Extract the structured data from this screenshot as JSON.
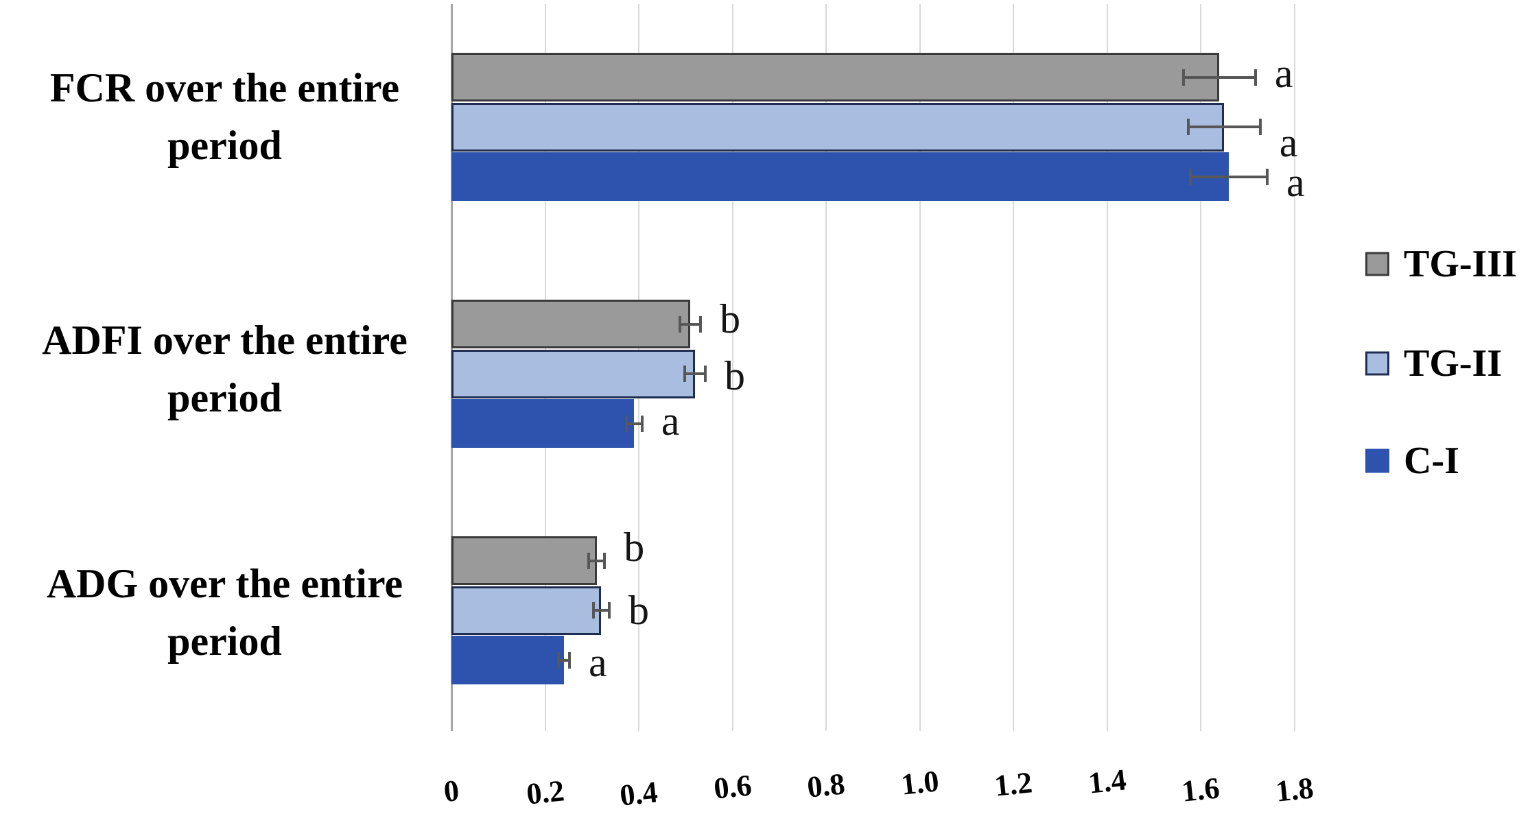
{
  "chart_data": {
    "type": "bar",
    "orientation": "horizontal",
    "title": "",
    "xlabel": "",
    "ylabel": "",
    "categories": [
      "FCR over the entire period",
      "ADFI over the entire period",
      "ADG over the entire period"
    ],
    "category_lines": [
      [
        "FCR over the entire",
        "period"
      ],
      [
        "ADFI over the entire",
        "period"
      ],
      [
        "ADG over the entire",
        "period"
      ]
    ],
    "series": [
      {
        "name": "TG-III",
        "color": "#9a9a9a",
        "border_color": "#3b3b3b",
        "values": [
          1.64,
          0.51,
          0.31
        ],
        "errors": [
          0.08,
          0.025,
          0.02
        ],
        "sig_letters": [
          "a",
          "b",
          "b"
        ]
      },
      {
        "name": "TG-II",
        "color": "#a9bde1",
        "border_color": "#1f2d50",
        "values": [
          1.65,
          0.52,
          0.32
        ],
        "errors": [
          0.08,
          0.025,
          0.02
        ],
        "sig_letters": [
          "a",
          "b",
          "b"
        ]
      },
      {
        "name": "C-I",
        "color": "#2d53ae",
        "border_color": "",
        "values": [
          1.66,
          0.39,
          0.24
        ],
        "errors": [
          0.085,
          0.02,
          0.015
        ],
        "sig_letters": [
          "a",
          "a",
          "a"
        ]
      }
    ],
    "x_axis": {
      "tick_labels": [
        "0",
        "0.2",
        "0.4",
        "0.6",
        "0.8",
        "1.0",
        "1.2",
        "1.4",
        "1.6",
        "1.8"
      ],
      "tick_values": [
        0,
        0.2,
        0.4,
        0.6,
        0.8,
        1.0,
        1.2,
        1.4,
        1.6,
        1.8
      ],
      "range": [
        0,
        2.0
      ]
    },
    "grid": true,
    "legend": {
      "position": "right",
      "entries": [
        "TG-III",
        "TG-II",
        "C-I"
      ]
    },
    "colors": {
      "background": "#ffffff",
      "gridline": "#d9d9d9",
      "axis": "#a6a6a6",
      "error_bar": "#575757",
      "sig_letter": "#151515",
      "text": "#000000"
    }
  }
}
